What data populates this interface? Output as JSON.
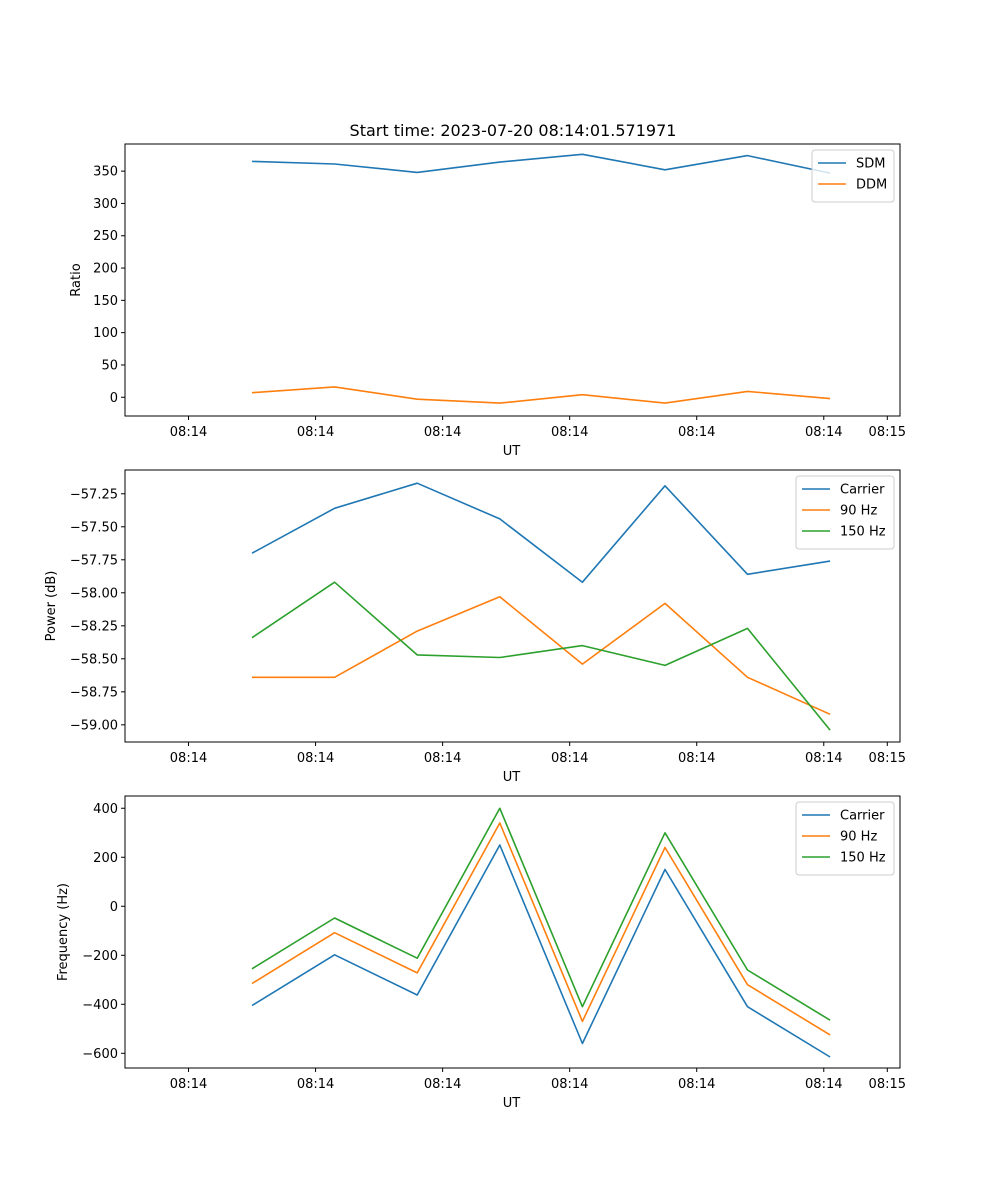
{
  "title": "Start time: 2023-07-20 08:14:01.571971",
  "colors": {
    "blue": "#1f77b4",
    "orange": "#ff7f0e",
    "green": "#2ca02c",
    "axis": "#000000",
    "legend_border": "#cccccc"
  },
  "chart_data": [
    {
      "type": "line",
      "xlabel": "UT",
      "ylabel": "Ratio",
      "grid": false,
      "legend": "top-right",
      "x": [
        1.0,
        1.65,
        2.3,
        2.95,
        3.6,
        4.25,
        4.9,
        5.55
      ],
      "xlim": [
        0.0,
        6.1
      ],
      "xticks": [
        0.5,
        1.5,
        2.5,
        3.5,
        4.5,
        5.5,
        6.0
      ],
      "xtick_labels": [
        "08:14",
        "08:14",
        "08:14",
        "08:14",
        "08:14",
        "08:14",
        "08:15"
      ],
      "ylim": [
        -29,
        392
      ],
      "yticks": [
        0,
        50,
        100,
        150,
        200,
        250,
        300,
        350
      ],
      "ytick_labels": [
        "0",
        "50",
        "100",
        "150",
        "200",
        "250",
        "300",
        "350"
      ],
      "series": [
        {
          "name": "SDM",
          "color": "blue",
          "values": [
            365,
            361,
            348,
            364,
            376,
            352,
            374,
            347
          ]
        },
        {
          "name": "DDM",
          "color": "orange",
          "values": [
            7,
            16,
            -3,
            -9,
            4,
            -9,
            9,
            -2
          ]
        }
      ]
    },
    {
      "type": "line",
      "xlabel": "UT",
      "ylabel": "Power (dB)",
      "grid": false,
      "legend": "top-right",
      "x": [
        1.0,
        1.65,
        2.3,
        2.95,
        3.6,
        4.25,
        4.9,
        5.55
      ],
      "xlim": [
        0.0,
        6.1
      ],
      "xticks": [
        0.5,
        1.5,
        2.5,
        3.5,
        4.5,
        5.5,
        6.0
      ],
      "xtick_labels": [
        "08:14",
        "08:14",
        "08:14",
        "08:14",
        "08:14",
        "08:14",
        "08:15"
      ],
      "ylim": [
        -59.13,
        -57.07
      ],
      "yticks": [
        -59.0,
        -58.75,
        -58.5,
        -58.25,
        -58.0,
        -57.75,
        -57.5,
        -57.25
      ],
      "ytick_labels": [
        "−59.00",
        "−58.75",
        "−58.50",
        "−58.25",
        "−58.00",
        "−57.75",
        "−57.50",
        "−57.25"
      ],
      "series": [
        {
          "name": "Carrier",
          "color": "blue",
          "values": [
            -57.7,
            -57.36,
            -57.17,
            -57.44,
            -57.92,
            -57.19,
            -57.86,
            -57.76
          ]
        },
        {
          "name": "90 Hz",
          "color": "orange",
          "values": [
            -58.64,
            -58.64,
            -58.29,
            -58.03,
            -58.54,
            -58.08,
            -58.64,
            -58.92
          ]
        },
        {
          "name": "150 Hz",
          "color": "green",
          "values": [
            -58.34,
            -57.92,
            -58.47,
            -58.49,
            -58.4,
            -58.55,
            -58.27,
            -59.04
          ]
        }
      ]
    },
    {
      "type": "line",
      "xlabel": "UT",
      "ylabel": "Frequency (Hz)",
      "grid": false,
      "legend": "top-right",
      "x": [
        1.0,
        1.65,
        2.3,
        2.95,
        3.6,
        4.25,
        4.9,
        5.55
      ],
      "xlim": [
        0.0,
        6.1
      ],
      "xticks": [
        0.5,
        1.5,
        2.5,
        3.5,
        4.5,
        5.5,
        6.0
      ],
      "xtick_labels": [
        "08:14",
        "08:14",
        "08:14",
        "08:14",
        "08:14",
        "08:14",
        "08:15"
      ],
      "ylim": [
        -660,
        450
      ],
      "yticks": [
        -600,
        -400,
        -200,
        0,
        200,
        400
      ],
      "ytick_labels": [
        "−600",
        "−400",
        "−200",
        "0",
        "200",
        "400"
      ],
      "series": [
        {
          "name": "Carrier",
          "color": "blue",
          "values": [
            -405,
            -198,
            -362,
            250,
            -560,
            150,
            -410,
            -615
          ]
        },
        {
          "name": "90 Hz",
          "color": "orange",
          "values": [
            -315,
            -108,
            -272,
            340,
            -470,
            240,
            -320,
            -525
          ]
        },
        {
          "name": "150 Hz",
          "color": "green",
          "values": [
            -255,
            -48,
            -212,
            400,
            -410,
            300,
            -260,
            -465
          ]
        }
      ]
    }
  ]
}
